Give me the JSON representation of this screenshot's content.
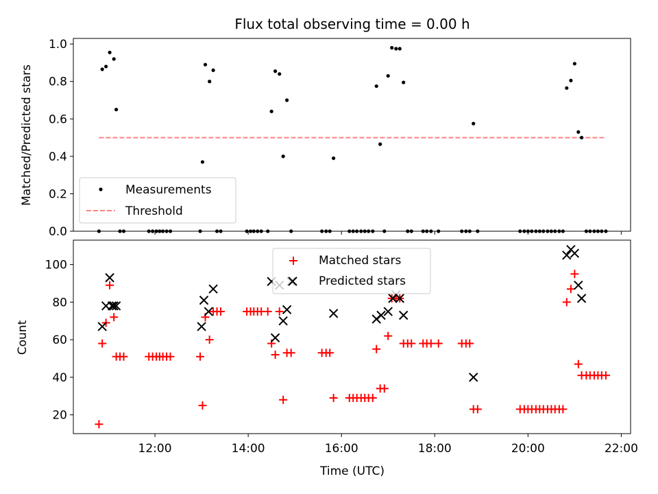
{
  "figure": {
    "title": "Flux total observing time = 0.00 h"
  },
  "colors": {
    "measurement": "#000000",
    "threshold": "#ff8080",
    "matched": "#ff0000",
    "predicted": "#000000"
  },
  "chart_data": [
    {
      "type": "scatter",
      "title": "Flux total observing time = 0.00 h",
      "xlabel": "",
      "ylabel": "Matched/Predicted stars",
      "xlim": [
        10.25,
        22.2
      ],
      "ylim": [
        0,
        1.03
      ],
      "x_tick_values": [
        12,
        14,
        16,
        18,
        20,
        22
      ],
      "y_ticks": [
        "0.0",
        "0.2",
        "0.4",
        "0.6",
        "0.8",
        "1.0"
      ],
      "y_tick_values": [
        0,
        0.2,
        0.4,
        0.6,
        0.8,
        1.0
      ],
      "grid": false,
      "legend": {
        "position": "lower-left",
        "entries": [
          "Measurements",
          "Threshold"
        ]
      },
      "threshold": {
        "name": "Threshold",
        "y": 0.5,
        "x_range": [
          10.8,
          21.65
        ],
        "style": "dashed"
      },
      "series": [
        {
          "name": "Measurements",
          "marker": "dot",
          "points": [
            [
              10.8,
              0
            ],
            [
              10.87,
              0.865
            ],
            [
              10.95,
              0.88
            ],
            [
              11.03,
              0.955
            ],
            [
              11.12,
              0.92
            ],
            [
              11.17,
              0.65
            ],
            [
              11.25,
              0
            ],
            [
              11.33,
              0
            ],
            [
              11.87,
              0
            ],
            [
              11.95,
              0
            ],
            [
              12.03,
              0
            ],
            [
              12.1,
              0
            ],
            [
              12.17,
              0
            ],
            [
              12.25,
              0
            ],
            [
              12.33,
              0
            ],
            [
              12.97,
              0
            ],
            [
              13.02,
              0.37
            ],
            [
              13.08,
              0.89
            ],
            [
              13.17,
              0.8
            ],
            [
              13.25,
              0.86
            ],
            [
              13.33,
              0
            ],
            [
              13.41,
              0
            ],
            [
              13.97,
              0
            ],
            [
              14.05,
              0
            ],
            [
              14.12,
              0
            ],
            [
              14.2,
              0
            ],
            [
              14.28,
              0
            ],
            [
              14.42,
              0
            ],
            [
              14.5,
              0.64
            ],
            [
              14.58,
              0.855
            ],
            [
              14.67,
              0.84
            ],
            [
              14.75,
              0.4
            ],
            [
              14.83,
              0.7
            ],
            [
              14.92,
              0
            ],
            [
              15.58,
              0
            ],
            [
              15.67,
              0
            ],
            [
              15.75,
              0
            ],
            [
              15.83,
              0.39
            ],
            [
              16.17,
              0
            ],
            [
              16.25,
              0
            ],
            [
              16.33,
              0
            ],
            [
              16.42,
              0
            ],
            [
              16.5,
              0
            ],
            [
              16.58,
              0
            ],
            [
              16.67,
              0
            ],
            [
              16.75,
              0.775
            ],
            [
              16.83,
              0.465
            ],
            [
              16.92,
              0
            ],
            [
              17.0,
              0.83
            ],
            [
              17.08,
              0.98
            ],
            [
              17.17,
              0.975
            ],
            [
              17.25,
              0.975
            ],
            [
              17.33,
              0.795
            ],
            [
              17.42,
              0
            ],
            [
              17.5,
              0
            ],
            [
              17.75,
              0
            ],
            [
              17.83,
              0
            ],
            [
              17.92,
              0
            ],
            [
              18.08,
              0
            ],
            [
              18.58,
              0
            ],
            [
              18.67,
              0
            ],
            [
              18.75,
              0
            ],
            [
              18.83,
              0.575
            ],
            [
              18.92,
              0
            ],
            [
              19.83,
              0
            ],
            [
              19.92,
              0
            ],
            [
              20.0,
              0
            ],
            [
              20.08,
              0
            ],
            [
              20.17,
              0
            ],
            [
              20.25,
              0
            ],
            [
              20.33,
              0
            ],
            [
              20.42,
              0
            ],
            [
              20.5,
              0
            ],
            [
              20.58,
              0
            ],
            [
              20.67,
              0
            ],
            [
              20.75,
              0
            ],
            [
              20.83,
              0.765
            ],
            [
              20.92,
              0.805
            ],
            [
              21.0,
              0.895
            ],
            [
              21.08,
              0.53
            ],
            [
              21.15,
              0.5
            ],
            [
              21.25,
              0
            ],
            [
              21.33,
              0
            ],
            [
              21.42,
              0
            ],
            [
              21.5,
              0
            ],
            [
              21.58,
              0
            ],
            [
              21.67,
              0
            ]
          ]
        }
      ]
    },
    {
      "type": "scatter",
      "title": "",
      "xlabel": "Time (UTC)",
      "ylabel": "Count",
      "xlim": [
        10.25,
        22.2
      ],
      "ylim": [
        10,
        113
      ],
      "x_ticks": [
        "12:00",
        "14:00",
        "16:00",
        "18:00",
        "20:00",
        "22:00"
      ],
      "x_tick_values": [
        12,
        14,
        16,
        18,
        20,
        22
      ],
      "y_ticks": [
        "20",
        "40",
        "60",
        "80",
        "100"
      ],
      "y_tick_values": [
        20,
        40,
        60,
        80,
        100
      ],
      "grid": false,
      "legend": {
        "position": "top-center",
        "entries": [
          "Matched stars",
          "Predicted stars"
        ]
      },
      "series": [
        {
          "name": "Matched stars",
          "marker": "plus",
          "points": [
            [
              10.8,
              15
            ],
            [
              10.87,
              58
            ],
            [
              10.95,
              69
            ],
            [
              11.03,
              89
            ],
            [
              11.12,
              72
            ],
            [
              11.17,
              51
            ],
            [
              11.25,
              51
            ],
            [
              11.33,
              51
            ],
            [
              11.87,
              51
            ],
            [
              11.95,
              51
            ],
            [
              12.03,
              51
            ],
            [
              12.1,
              51
            ],
            [
              12.17,
              51
            ],
            [
              12.25,
              51
            ],
            [
              12.33,
              51
            ],
            [
              12.97,
              51
            ],
            [
              13.02,
              25
            ],
            [
              13.08,
              72
            ],
            [
              13.17,
              60
            ],
            [
              13.25,
              75
            ],
            [
              13.33,
              75
            ],
            [
              13.41,
              75
            ],
            [
              13.97,
              75
            ],
            [
              14.05,
              75
            ],
            [
              14.12,
              75
            ],
            [
              14.2,
              75
            ],
            [
              14.28,
              75
            ],
            [
              14.42,
              75
            ],
            [
              14.5,
              58
            ],
            [
              14.58,
              52
            ],
            [
              14.67,
              75
            ],
            [
              14.75,
              28
            ],
            [
              14.83,
              53
            ],
            [
              14.92,
              53
            ],
            [
              15.58,
              53
            ],
            [
              15.67,
              53
            ],
            [
              15.75,
              53
            ],
            [
              15.83,
              29
            ],
            [
              16.17,
              29
            ],
            [
              16.25,
              29
            ],
            [
              16.33,
              29
            ],
            [
              16.42,
              29
            ],
            [
              16.5,
              29
            ],
            [
              16.58,
              29
            ],
            [
              16.67,
              29
            ],
            [
              16.75,
              55
            ],
            [
              16.83,
              34
            ],
            [
              16.92,
              34
            ],
            [
              17.0,
              62
            ],
            [
              17.08,
              82
            ],
            [
              17.17,
              82
            ],
            [
              17.25,
              82
            ],
            [
              17.33,
              58
            ],
            [
              17.42,
              58
            ],
            [
              17.5,
              58
            ],
            [
              17.75,
              58
            ],
            [
              17.83,
              58
            ],
            [
              17.92,
              58
            ],
            [
              18.08,
              58
            ],
            [
              18.58,
              58
            ],
            [
              18.67,
              58
            ],
            [
              18.75,
              58
            ],
            [
              18.83,
              23
            ],
            [
              18.92,
              23
            ],
            [
              19.83,
              23
            ],
            [
              19.92,
              23
            ],
            [
              20.0,
              23
            ],
            [
              20.08,
              23
            ],
            [
              20.17,
              23
            ],
            [
              20.25,
              23
            ],
            [
              20.33,
              23
            ],
            [
              20.42,
              23
            ],
            [
              20.5,
              23
            ],
            [
              20.58,
              23
            ],
            [
              20.67,
              23
            ],
            [
              20.75,
              23
            ],
            [
              20.83,
              80
            ],
            [
              20.92,
              87
            ],
            [
              21.0,
              95
            ],
            [
              21.08,
              47
            ],
            [
              21.15,
              41
            ],
            [
              21.25,
              41
            ],
            [
              21.33,
              41
            ],
            [
              21.42,
              41
            ],
            [
              21.5,
              41
            ],
            [
              21.58,
              41
            ],
            [
              21.67,
              41
            ]
          ]
        },
        {
          "name": "Predicted stars",
          "marker": "x",
          "points": [
            [
              10.87,
              67
            ],
            [
              10.95,
              78
            ],
            [
              11.03,
              93
            ],
            [
              11.08,
              78
            ],
            [
              11.12,
              78
            ],
            [
              11.17,
              78
            ],
            [
              13.0,
              67
            ],
            [
              13.05,
              81
            ],
            [
              13.15,
              75
            ],
            [
              13.25,
              87
            ],
            [
              14.5,
              91
            ],
            [
              14.58,
              61
            ],
            [
              14.67,
              89
            ],
            [
              14.75,
              70
            ],
            [
              14.83,
              76
            ],
            [
              14.92,
              91
            ],
            [
              15.83,
              74
            ],
            [
              16.75,
              71
            ],
            [
              16.85,
              73
            ],
            [
              17.0,
              75
            ],
            [
              17.1,
              82
            ],
            [
              17.17,
              84
            ],
            [
              17.25,
              82
            ],
            [
              17.33,
              73
            ],
            [
              18.83,
              40
            ],
            [
              20.83,
              105
            ],
            [
              20.92,
              108
            ],
            [
              21.0,
              106
            ],
            [
              21.08,
              89
            ],
            [
              21.15,
              82
            ]
          ]
        }
      ]
    }
  ]
}
